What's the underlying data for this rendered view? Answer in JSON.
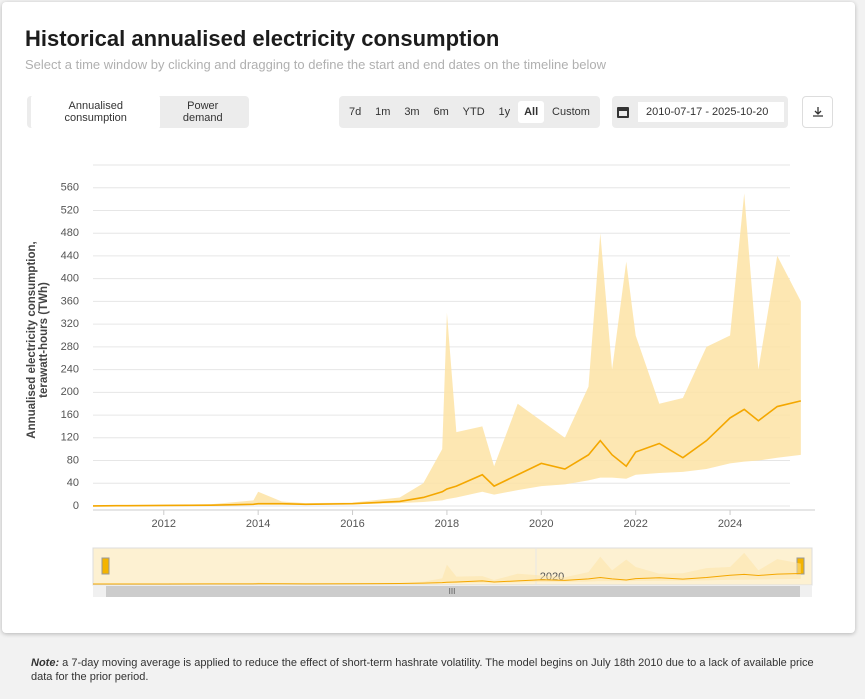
{
  "header": {
    "title": "Historical annualised electricity consumption",
    "subtitle": "Select a time window by clicking and dragging to define the start and end dates on the timeline below"
  },
  "controls": {
    "views": [
      "Annualised consumption",
      "Power demand"
    ],
    "ranges": [
      "7d",
      "1m",
      "3m",
      "6m",
      "YTD",
      "1y",
      "All",
      "Custom"
    ],
    "date_range": "2010-07-17 - 2025-10-20"
  },
  "chart_data": {
    "type": "line",
    "ylabel": [
      "Annualised electricity consumption,",
      "terawatt-hours (TWh)"
    ],
    "x": [
      2010.5,
      2011,
      2012,
      2013,
      2013.9,
      2014,
      2014.5,
      2015,
      2016,
      2017,
      2017.5,
      2017.9,
      2018,
      2018.2,
      2018.75,
      2019,
      2019.5,
      2020,
      2020.5,
      2021,
      2021.25,
      2021.5,
      2021.8,
      2022,
      2022.5,
      2023,
      2023.5,
      2024,
      2024.3,
      2024.6,
      2025,
      2025.5
    ],
    "series": [
      {
        "color": "#f4a700",
        "values": [
          0.1,
          0.5,
          1,
          1.5,
          3,
          4,
          4,
          3,
          4,
          8,
          15,
          25,
          30,
          35,
          55,
          35,
          55,
          75,
          65,
          90,
          115,
          90,
          70,
          95,
          110,
          85,
          115,
          155,
          170,
          150,
          175,
          185
        ]
      }
    ],
    "band": {
      "color": "#fde3a4",
      "lower": [
        0,
        0.2,
        0.5,
        1,
        2,
        2,
        2,
        2,
        3,
        5,
        7,
        10,
        12,
        15,
        25,
        20,
        28,
        35,
        38,
        45,
        50,
        50,
        48,
        55,
        58,
        60,
        65,
        75,
        78,
        80,
        85,
        90
      ],
      "upper": [
        0.2,
        1,
        2,
        3,
        10,
        25,
        8,
        5,
        6,
        15,
        40,
        100,
        340,
        130,
        140,
        70,
        180,
        150,
        120,
        210,
        480,
        240,
        430,
        300,
        180,
        190,
        280,
        300,
        550,
        240,
        440,
        360
      ]
    },
    "xlim": [
      2010.5,
      2025.8
    ],
    "xticks": [
      2012,
      2014,
      2016,
      2018,
      2020,
      2022,
      2024
    ],
    "ylim": [
      0,
      600
    ],
    "yticks": [
      0,
      40,
      80,
      120,
      160,
      200,
      240,
      280,
      320,
      360,
      400,
      440,
      480,
      520,
      560
    ],
    "grid": true
  },
  "navigator": {
    "label": "2020"
  },
  "note": {
    "label": "Note:",
    "text": "a 7-day moving average is applied to reduce the effect of short-term hashrate volatility. The model begins on July 18th 2010 due to a lack of available price data for the prior period."
  }
}
